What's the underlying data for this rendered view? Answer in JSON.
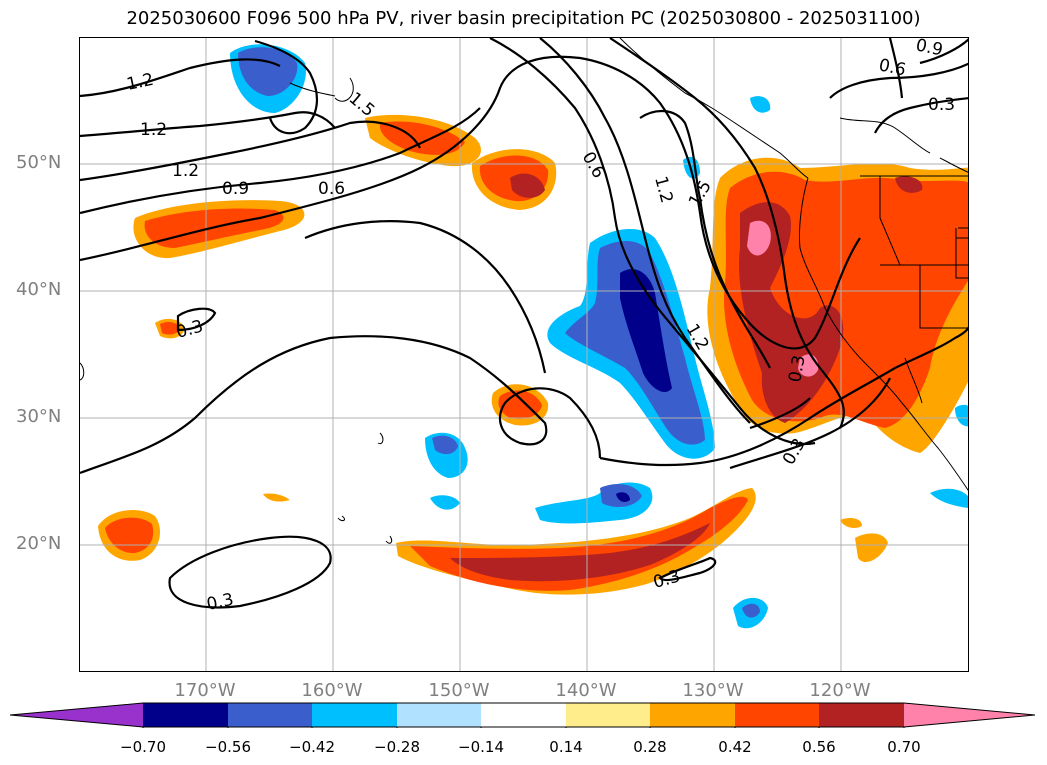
{
  "title": "2025030600 F096 500 hPa PV, river basin precipitation PC (2025030800 - 2025031100)",
  "axes": {
    "lat_labels": [
      "50°N",
      "40°N",
      "30°N",
      "20°N"
    ],
    "lon_labels": [
      "170°W",
      "160°W",
      "150°W",
      "140°W",
      "130°W",
      "120°W"
    ]
  },
  "contour_labels": [
    "1.2",
    "1.2",
    "1.2",
    "0.9",
    "0.6",
    "1.5",
    "0.6",
    "1.2",
    "1.5",
    "1.2",
    "0.3",
    "0.3",
    "0.3",
    "0.3",
    "0.3",
    "0.9",
    "0.6",
    "0.3"
  ],
  "colorbar": {
    "ticks": [
      "−0.70",
      "−0.56",
      "−0.42",
      "−0.28",
      "−0.14",
      "0.14",
      "0.28",
      "0.42",
      "0.56",
      "0.70"
    ],
    "colors": [
      "#9932cc",
      "#00008b",
      "#3a5fcd",
      "#00bfff",
      "#b0e2ff",
      "#ffffff",
      "#ffec8b",
      "#ffa500",
      "#ff4500",
      "#b22222",
      "#ff82ab"
    ]
  }
}
